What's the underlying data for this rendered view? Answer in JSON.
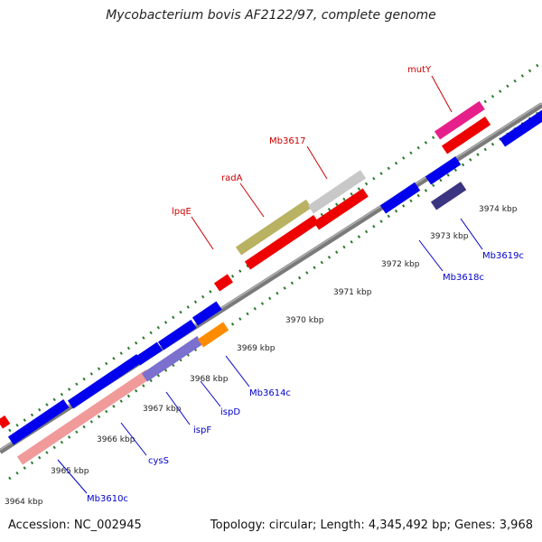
{
  "title": "Mycobacterium bovis AF2122/97, complete genome",
  "footer": {
    "accession": "Accession: NC_002945",
    "summary": "Topology: circular; Length: 4,345,492 bp; Genes: 3,968"
  },
  "colors": {
    "forward_label": "#cc0000",
    "reverse_label": "#0000cc",
    "backbone": "#7a7a7a",
    "tick": "#2a7a2a"
  },
  "ticks": [
    {
      "label": "3964 kbp"
    },
    {
      "label": "3965 kbp"
    },
    {
      "label": "3966 kbp"
    },
    {
      "label": "3967 kbp"
    },
    {
      "label": "3968 kbp"
    },
    {
      "label": "3969 kbp"
    },
    {
      "label": "3970 kbp"
    },
    {
      "label": "3971 kbp"
    },
    {
      "label": "3972 kbp"
    },
    {
      "label": "3973 kbp"
    },
    {
      "label": "3974 kbp"
    }
  ],
  "gene_labels": {
    "forward": [
      "lpqE",
      "radA",
      "Mb3617",
      "mutY"
    ],
    "reverse": [
      "Mb3610c",
      "cysS",
      "ispF",
      "ispD",
      "Mb3614c",
      "Mb3618c",
      "Mb3619c"
    ]
  }
}
